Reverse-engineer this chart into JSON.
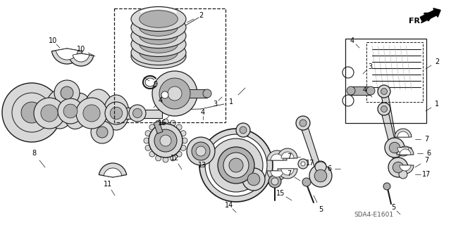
{
  "bg_color": "#ffffff",
  "fig_width": 6.4,
  "fig_height": 3.2,
  "dpi": 100,
  "watermark": "SDA4-E1601",
  "line_color": "#1a1a1a",
  "gray_light": "#d8d8d8",
  "gray_mid": "#b0b0b0",
  "gray_dark": "#808080"
}
